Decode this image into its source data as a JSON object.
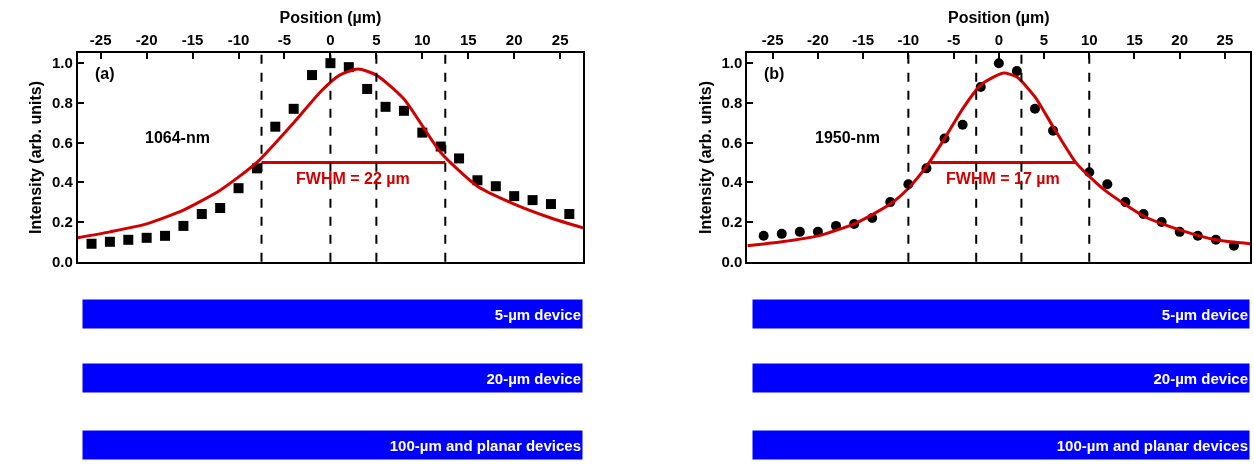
{
  "chart_data": [
    {
      "type": "scatter",
      "xlabel": "Position (µm)",
      "ylabel": "Intensity (arb. units)",
      "xlim": [
        -27.5,
        27.5
      ],
      "xticks": [
        -25,
        -20,
        -15,
        -10,
        -5,
        0,
        5,
        10,
        15,
        20,
        25
      ],
      "ylim": [
        0,
        1.05
      ],
      "yticks": [
        {
          "value": 0,
          "label": "0.0"
        },
        {
          "value": 0.2,
          "label": "0.2"
        },
        {
          "value": 0.4,
          "label": "0.4"
        },
        {
          "value": 0.6,
          "label": "0.6"
        },
        {
          "value": 0.8,
          "label": "0.8"
        },
        {
          "value": 1,
          "label": "1.0"
        }
      ],
      "series": [
        {
          "marker": "square",
          "color": "#000000",
          "x": [
            -26,
            -24,
            -22,
            -20,
            -18,
            -16,
            -14,
            -12,
            -10,
            -8,
            -6,
            -4,
            -2,
            0,
            2,
            4,
            6,
            8,
            10,
            12,
            14,
            16,
            18,
            20,
            22,
            24,
            26
          ],
          "values": [
            0.09,
            0.1,
            0.11,
            0.12,
            0.13,
            0.18,
            0.24,
            0.27,
            0.37,
            0.47,
            0.68,
            0.77,
            0.94,
            1.0,
            0.98,
            0.87,
            0.78,
            0.76,
            0.65,
            0.58,
            0.52,
            0.41,
            0.38,
            0.33,
            0.31,
            0.29,
            0.24
          ]
        },
        {
          "type": "line",
          "color": "#d00000",
          "x": [
            -27.5,
            -24,
            -20,
            -16,
            -12,
            -8,
            -4,
            -1,
            1,
            3,
            5,
            8,
            12,
            16,
            20,
            24,
            27.5
          ],
          "values": [
            0.12,
            0.15,
            0.19,
            0.26,
            0.36,
            0.5,
            0.7,
            0.86,
            0.94,
            0.97,
            0.94,
            0.82,
            0.55,
            0.38,
            0.29,
            0.22,
            0.17
          ]
        },
        {
          "type": "line",
          "color": "#d00000",
          "x": [
            -7.5,
            12.5
          ],
          "values": [
            0.5,
            0.5
          ]
        }
      ],
      "ref_lines": [
        {
          "axis": "x",
          "value": -7.5,
          "color": "#000000",
          "line_style": "dashed"
        },
        {
          "axis": "x",
          "value": 0,
          "color": "#000000",
          "line_style": "dashed"
        },
        {
          "axis": "x",
          "value": 5,
          "color": "#000000",
          "line_style": "dashed"
        },
        {
          "axis": "x",
          "value": 12.5,
          "color": "#000000",
          "line_style": "dashed"
        }
      ],
      "annotations": [
        "(a)",
        "1064-nm",
        "FWHM = 22 µm",
        "5-µm device",
        "20-µm device",
        "100-µm and planar devices"
      ]
    },
    {
      "type": "scatter",
      "xlabel": "Position (µm)",
      "ylabel": "Intensity (arb. units)",
      "xlim": [
        -27.8,
        27.8
      ],
      "xticks": [
        -25,
        -20,
        -15,
        -10,
        -5,
        0,
        5,
        10,
        15,
        20,
        25
      ],
      "ylim": [
        0,
        1.05
      ],
      "yticks": [
        {
          "value": 0,
          "label": "0.0"
        },
        {
          "value": 0.2,
          "label": "0.2"
        },
        {
          "value": 0.4,
          "label": "0.4"
        },
        {
          "value": 0.6,
          "label": "0.6"
        },
        {
          "value": 0.8,
          "label": "0.8"
        },
        {
          "value": 1,
          "label": "1.0"
        }
      ],
      "series": [
        {
          "marker": "circle",
          "color": "#000000",
          "x": [
            -26,
            -24,
            -22,
            -20,
            -18,
            -16,
            -14,
            -12,
            -10,
            -8,
            -6,
            -4,
            -2,
            0,
            2,
            4,
            6,
            8,
            10,
            12,
            14,
            16,
            18,
            20,
            22,
            24,
            26
          ],
          "values": [
            0.13,
            0.14,
            0.15,
            0.15,
            0.18,
            0.19,
            0.22,
            0.3,
            0.39,
            0.47,
            0.62,
            0.69,
            0.88,
            1.0,
            0.96,
            0.77,
            0.66,
            null,
            0.45,
            0.39,
            0.3,
            0.24,
            0.2,
            0.15,
            0.13,
            0.11,
            0.08
          ]
        },
        {
          "type": "line",
          "color": "#d00000",
          "x": [
            -27.8,
            -24,
            -20,
            -16,
            -12,
            -10,
            -8,
            -6,
            -4,
            -2,
            0.5,
            2,
            4,
            6,
            8.5,
            10,
            12,
            16,
            20,
            24,
            27.8
          ],
          "values": [
            0.08,
            0.1,
            0.13,
            0.19,
            0.29,
            0.37,
            0.48,
            0.62,
            0.77,
            0.89,
            0.95,
            0.93,
            0.83,
            0.68,
            0.5,
            0.43,
            0.35,
            0.23,
            0.16,
            0.11,
            0.09
          ]
        },
        {
          "type": "line",
          "color": "#d00000",
          "x": [
            -7.5,
            8.5
          ],
          "values": [
            0.5,
            0.5
          ]
        }
      ],
      "ref_lines": [
        {
          "axis": "x",
          "value": -10,
          "color": "#000000",
          "line_style": "dashed"
        },
        {
          "axis": "x",
          "value": -2.5,
          "color": "#000000",
          "line_style": "dashed"
        },
        {
          "axis": "x",
          "value": 2.5,
          "color": "#000000",
          "line_style": "dashed"
        },
        {
          "axis": "x",
          "value": 10,
          "color": "#000000",
          "line_style": "dashed"
        }
      ],
      "annotations": [
        "(b)",
        "1950-nm",
        "FWHM = 17 µm",
        "5-µm device",
        "20-µm device",
        "100-µm and planar devices"
      ]
    }
  ]
}
